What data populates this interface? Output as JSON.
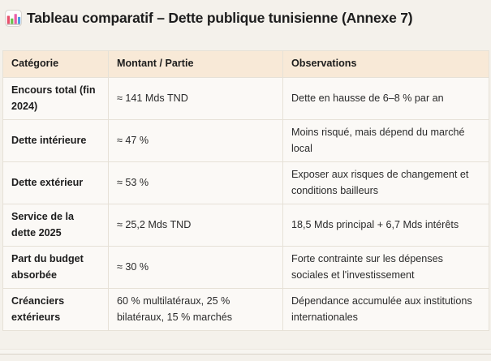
{
  "title": {
    "icon": "bar-chart-icon",
    "text": "Tableau comparatif – Dette publique tunisienne (Annexe 7)"
  },
  "table": {
    "headers": [
      "Catégorie",
      "Montant / Partie",
      "Observations"
    ],
    "rows": [
      {
        "categorie": "Encours total (fin 2024)",
        "montant": "≈ 141 Mds TND",
        "observations": "Dette en hausse de 6–8 % par an"
      },
      {
        "categorie": "Dette intérieure",
        "montant": "≈ 47 %",
        "observations": "Moins risqué, mais dépend du marché local"
      },
      {
        "categorie": "Dette extérieur",
        "montant": "≈ 53 %",
        "observations": "Exposer aux risques de changement et conditions bailleurs"
      },
      {
        "categorie": "Service de la dette 2025",
        "montant": "≈ 25,2 Mds TND",
        "observations": "18,5 Mds principal + 6,7 Mds intérêts"
      },
      {
        "categorie": "Part du budget absorbée",
        "montant": "≈ 30 %",
        "observations": "Forte contrainte sur les dépenses sociales et l'investissement"
      },
      {
        "categorie": "Créanciers extérieurs",
        "montant": "60 % multilatéraux, 25 % bilatéraux, 15 % marchés",
        "observations": "Dépendance accumulée aux institutions internationales"
      }
    ]
  },
  "colors": {
    "page_bg": "#f4f1eb",
    "header_bg": "#f8e9d7",
    "cell_bg": "#fbf9f6",
    "border": "#e6e1d7",
    "text": "#1d1d1d"
  }
}
